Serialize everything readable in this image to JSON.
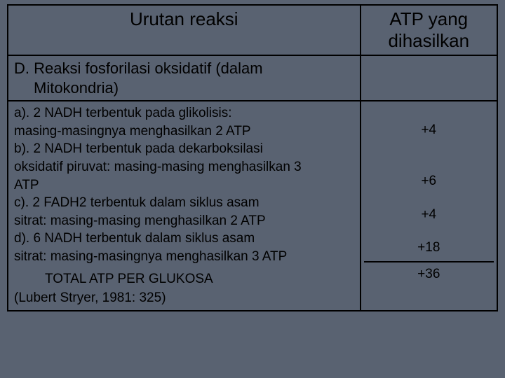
{
  "headers": {
    "left": "Urutan reaksi",
    "right": "ATP yang dihasilkan"
  },
  "section": {
    "label": "D. Reaksi fosforilasi oksidatif (dalam",
    "label_line2": "Mitokondria)"
  },
  "items": {
    "a_line1": "a). 2 NADH terbentuk pada glikolisis:",
    "a_line2": "masing-masingnya menghasilkan 2 ATP",
    "b_line1": "b). 2 NADH terbentuk pada dekarboksilasi",
    "b_line2": "oksidatif piruvat: masing-masing menghasilkan 3",
    "b_line3": "ATP",
    "c_line1": "c). 2 FADH2 terbentuk dalam siklus asam",
    "c_line2": "sitrat: masing-masing menghasilkan 2 ATP",
    "d_line1": "d). 6 NADH terbentuk dalam siklus asam",
    "d_line2": "sitrat: masing-masingnya menghasilkan 3 ATP",
    "total": "TOTAL ATP PER GLUKOSA",
    "source": "(Lubert Stryer, 1981: 325)"
  },
  "atp": {
    "a": "+4",
    "b": "+6",
    "c": "+4",
    "d": "+18",
    "total": "+36"
  },
  "style": {
    "background": "#596271",
    "border_color": "#000000",
    "header_fontsize": 26,
    "section_fontsize": 22,
    "body_fontsize": 19
  }
}
